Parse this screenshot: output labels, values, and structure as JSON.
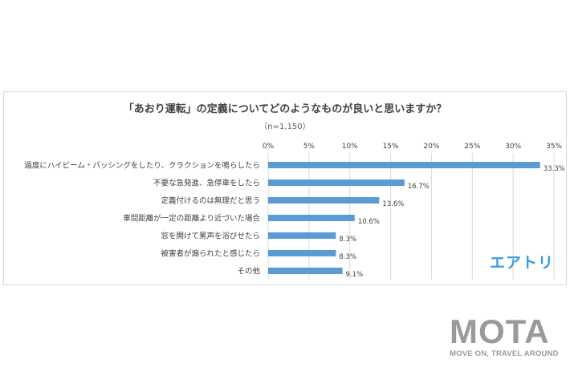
{
  "chart_data": {
    "type": "bar",
    "orientation": "horizontal",
    "title": "「あおり運転」の定義についてどのようなものが良いと思いますか？",
    "subtitle": "（n=1,150）",
    "categories": [
      "過度にハイビーム・パッシングをしたり、クラクションを鳴らしたら",
      "不要な急発進、急停車をしたら",
      "定義付けるのは無理だと思う",
      "車間距離が一定の距離より近づいた場合",
      "窓を開けて罵声を浴びせたら",
      "被害者が煽られたと感じたら",
      "その他"
    ],
    "values": [
      33.3,
      16.7,
      13.6,
      10.6,
      8.3,
      8.3,
      9.1
    ],
    "value_labels": [
      "33.3%",
      "16.7%",
      "13.6%",
      "10.6%",
      "8.3%",
      "8.3%",
      "9.1%"
    ],
    "xlim": [
      0,
      35
    ],
    "ticks": [
      0,
      5,
      10,
      15,
      20,
      25,
      30,
      35
    ],
    "tick_labels": [
      "0%",
      "5%",
      "10%",
      "15%",
      "20%",
      "25%",
      "30%",
      "35%"
    ],
    "grid": true,
    "axis_position": "top",
    "bar_color": "#5b9bd5"
  },
  "logos": {
    "airtrip": "エアトリ",
    "mota": "MOTA",
    "mota_tagline": "MOVE ON, TRAVEL AROUND"
  }
}
